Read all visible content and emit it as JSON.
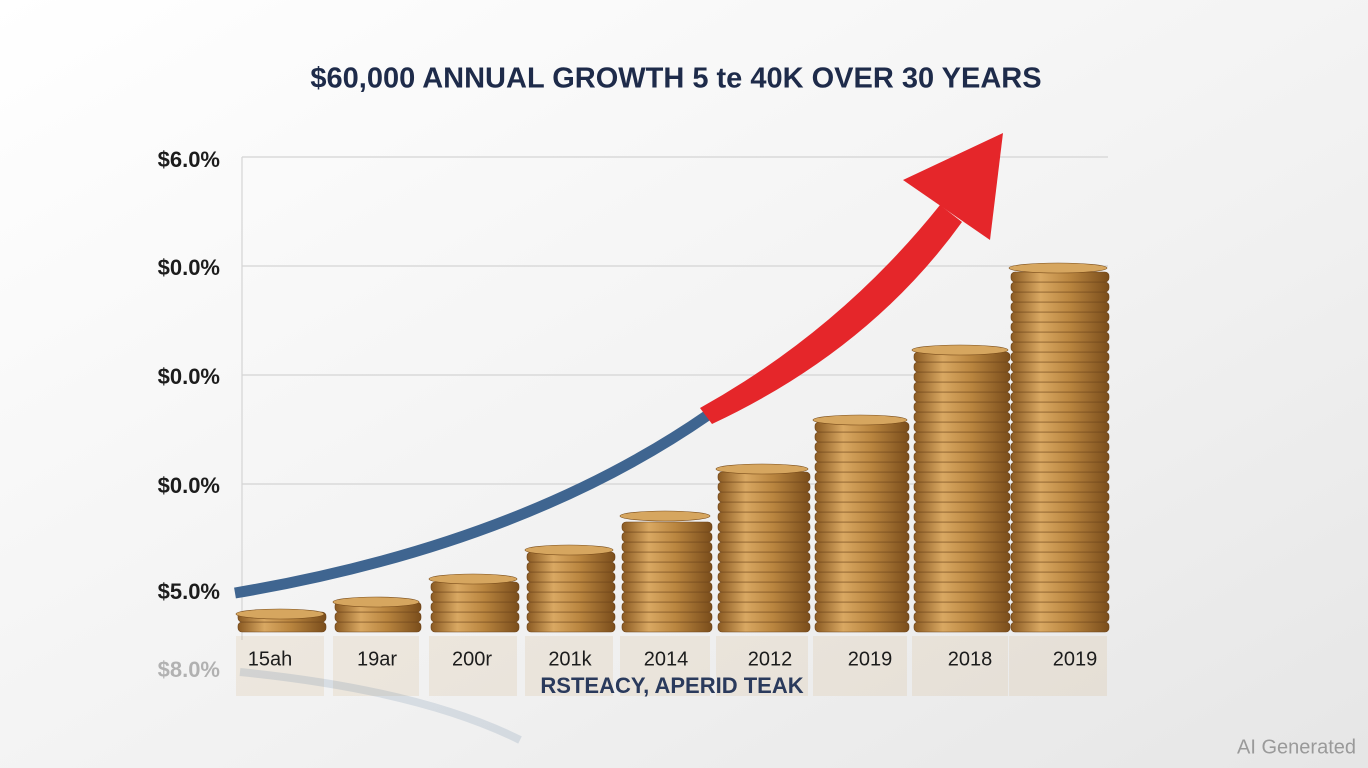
{
  "title": "$60,000 ANNUAL GROWTH 5 te 40K OVER 30 YEARS",
  "y_labels": [
    "$6.0%",
    "$0.0%",
    "$0.0%",
    "$0.0%",
    "$5.0%"
  ],
  "y_reflection": "$8.0%",
  "x_labels": [
    "15ah",
    "19ar",
    "200r",
    "201k",
    "2014",
    "2012",
    "2019",
    "2018",
    "2019"
  ],
  "x_axis_title": "RSTEACY, APERID TEAK",
  "watermark": "AI Generated"
}
